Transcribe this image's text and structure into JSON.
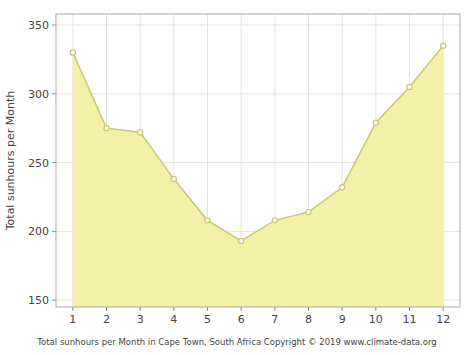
{
  "chart_data": {
    "type": "area",
    "xlabel": "Total sunhours per Month in Cape Town, South Africa Copyright © 2019 www.climate-data.org",
    "ylabel": "Total sunhours per Month",
    "x": [
      1,
      2,
      3,
      4,
      5,
      6,
      7,
      8,
      9,
      10,
      11,
      12
    ],
    "color": "#f5f0a8",
    "series": [
      {
        "values": [
          330,
          275,
          272,
          238,
          208,
          193,
          208,
          214,
          232,
          279,
          305,
          335
        ],
        "color": "#c8c870",
        "marker": "circle"
      }
    ],
    "xlim": [
      0.5,
      12.5
    ],
    "xticks": [
      1,
      2,
      3,
      4,
      5,
      6,
      7,
      8,
      9,
      10,
      11,
      12
    ],
    "ylim": [
      145,
      358
    ],
    "yticks": [
      150,
      200,
      250,
      300,
      350
    ],
    "grid": true
  }
}
